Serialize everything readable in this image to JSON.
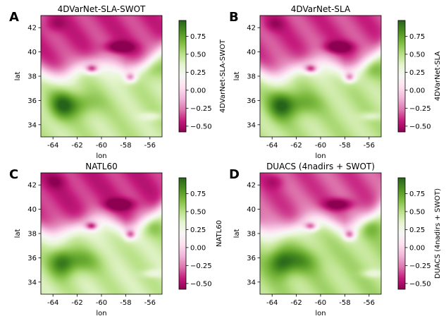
{
  "figure": {
    "colors": {
      "cmap": [
        "#8e0152",
        "#c51b7d",
        "#de77ae",
        "#f1b6da",
        "#fde0ef",
        "#f7f7f7",
        "#e6f5d0",
        "#b8e186",
        "#7fbc41",
        "#4d9221",
        "#276419"
      ]
    }
  },
  "chart_data": [
    {
      "type": "heatmap",
      "letter": "A",
      "title": "4DVarNet-SLA-SWOT",
      "xlabel": "lon",
      "ylabel": "lat",
      "colorbar_label": "4DVarNet-SLA-SWOT",
      "xlim": [
        -65,
        -55
      ],
      "ylim": [
        33,
        43
      ],
      "xticks": [
        "-64",
        "-62",
        "-60",
        "-58",
        "-56"
      ],
      "xtick_values": [
        -64,
        -62,
        -60,
        -58,
        -56
      ],
      "yticks": [
        "34",
        "36",
        "38",
        "40",
        "42"
      ],
      "ytick_values": [
        34,
        36,
        38,
        40,
        42
      ],
      "clim": [
        -0.58,
        0.97
      ],
      "cticks": [
        "0.75",
        "0.50",
        "0.25",
        "0.00",
        "−0.25",
        "−0.50"
      ],
      "ctick_values": [
        0.75,
        0.5,
        0.25,
        0.0,
        -0.25,
        -0.5
      ]
    },
    {
      "type": "heatmap",
      "letter": "B",
      "title": "4DVarNet-SLA",
      "xlabel": "lon",
      "ylabel": "lat",
      "colorbar_label": "4DVarNet-SLA",
      "xlim": [
        -65,
        -55
      ],
      "ylim": [
        33,
        43
      ],
      "xticks": [
        "-64",
        "-62",
        "-60",
        "-58",
        "-56"
      ],
      "xtick_values": [
        -64,
        -62,
        -60,
        -58,
        -56
      ],
      "yticks": [
        "34",
        "36",
        "38",
        "40",
        "42"
      ],
      "ytick_values": [
        34,
        36,
        38,
        40,
        42
      ],
      "clim": [
        -0.58,
        0.97
      ],
      "cticks": [
        "0.75",
        "0.50",
        "0.25",
        "0.00",
        "−0.25",
        "−0.50"
      ],
      "ctick_values": [
        0.75,
        0.5,
        0.25,
        0.0,
        -0.25,
        -0.5
      ]
    },
    {
      "type": "heatmap",
      "letter": "C",
      "title": "NATL60",
      "xlabel": "lon",
      "ylabel": "lat",
      "colorbar_label": "NATL60",
      "xlim": [
        -65,
        -55
      ],
      "ylim": [
        33,
        43
      ],
      "xticks": [
        "-64",
        "-62",
        "-60",
        "-58",
        "-56"
      ],
      "xtick_values": [
        -64,
        -62,
        -60,
        -58,
        -56
      ],
      "yticks": [
        "34",
        "36",
        "38",
        "40",
        "42"
      ],
      "ytick_values": [
        34,
        36,
        38,
        40,
        42
      ],
      "clim": [
        -0.58,
        0.97
      ],
      "cticks": [
        "0.75",
        "0.50",
        "0.25",
        "0.00",
        "−0.25",
        "−0.50"
      ],
      "ctick_values": [
        0.75,
        0.5,
        0.25,
        0.0,
        -0.25,
        -0.5
      ]
    },
    {
      "type": "heatmap",
      "letter": "D",
      "title": "DUACS (4nadirs + SWOT)",
      "xlabel": "lon",
      "ylabel": "lat",
      "colorbar_label": "DUACS (4nadirs + SWOT)",
      "xlim": [
        -65,
        -55
      ],
      "ylim": [
        33,
        43
      ],
      "xticks": [
        "-64",
        "-62",
        "-60",
        "-58",
        "-56"
      ],
      "xtick_values": [
        -64,
        -62,
        -60,
        -58,
        -56
      ],
      "yticks": [
        "34",
        "36",
        "38",
        "40",
        "42"
      ],
      "ytick_values": [
        34,
        36,
        38,
        40,
        42
      ],
      "clim": [
        -0.58,
        0.97
      ],
      "cticks": [
        "0.75",
        "0.50",
        "0.25",
        "0.00",
        "−0.25",
        "−0.50"
      ],
      "ctick_values": [
        0.75,
        0.5,
        0.25,
        0.0,
        -0.25,
        -0.5
      ]
    }
  ]
}
